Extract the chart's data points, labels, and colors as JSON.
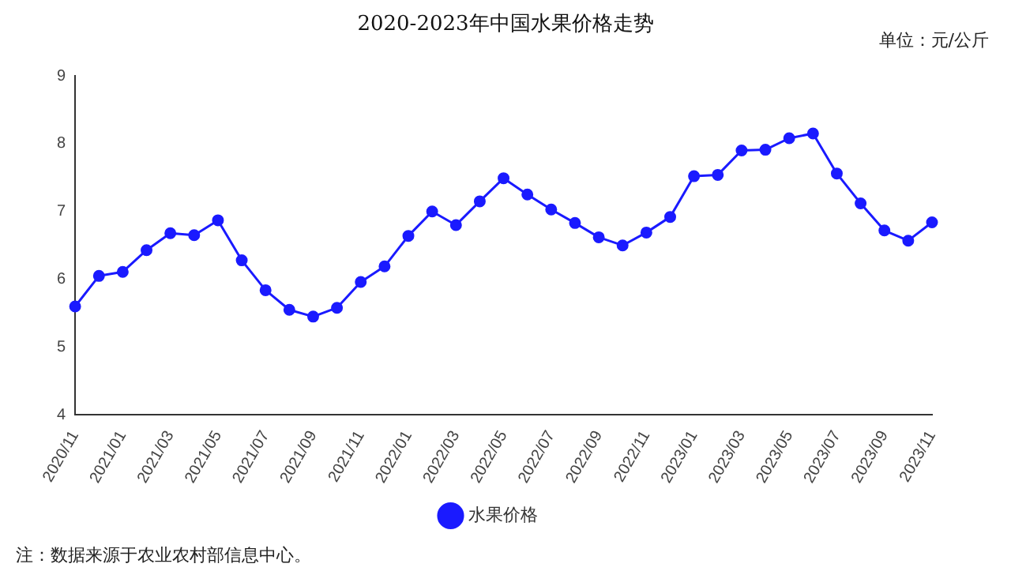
{
  "chart_data": {
    "type": "line",
    "title": "2020-2023年中国水果价格走势",
    "ylabel": "单位：元/公斤",
    "annotations": [
      "注：数据来源于农业农村部信息中心。"
    ],
    "categories": [
      "2020/11",
      null,
      "2021/01",
      null,
      "2021/03",
      null,
      "2021/05",
      null,
      "2021/07",
      null,
      "2021/09",
      null,
      "2021/11",
      null,
      "2022/01",
      null,
      "2022/03",
      null,
      "2022/05",
      null,
      "2022/07",
      null,
      "2022/09",
      null,
      "2022/11",
      null,
      "2023/01",
      null,
      "2023/03",
      null,
      "2023/05",
      null,
      "2023/07",
      null,
      "2023/09",
      null,
      "2023/11"
    ],
    "series": [
      {
        "name": "水果价格",
        "color": "#1a1aff",
        "values": [
          5.6,
          6.05,
          6.11,
          6.43,
          6.68,
          6.65,
          6.87,
          6.28,
          5.84,
          5.55,
          5.45,
          5.58,
          5.96,
          6.19,
          6.64,
          7.0,
          6.8,
          7.15,
          7.49,
          7.25,
          7.03,
          6.83,
          6.62,
          6.5,
          6.69,
          6.92,
          7.52,
          7.54,
          7.9,
          7.91,
          8.08,
          8.15,
          7.56,
          7.12,
          6.72,
          6.57,
          6.84
        ]
      }
    ],
    "ylim": [
      4,
      9
    ],
    "yticks": [
      4,
      5,
      6,
      7,
      8,
      9
    ],
    "grid": false,
    "legend": "bottom",
    "marker": "circle",
    "line_style": "solid"
  }
}
